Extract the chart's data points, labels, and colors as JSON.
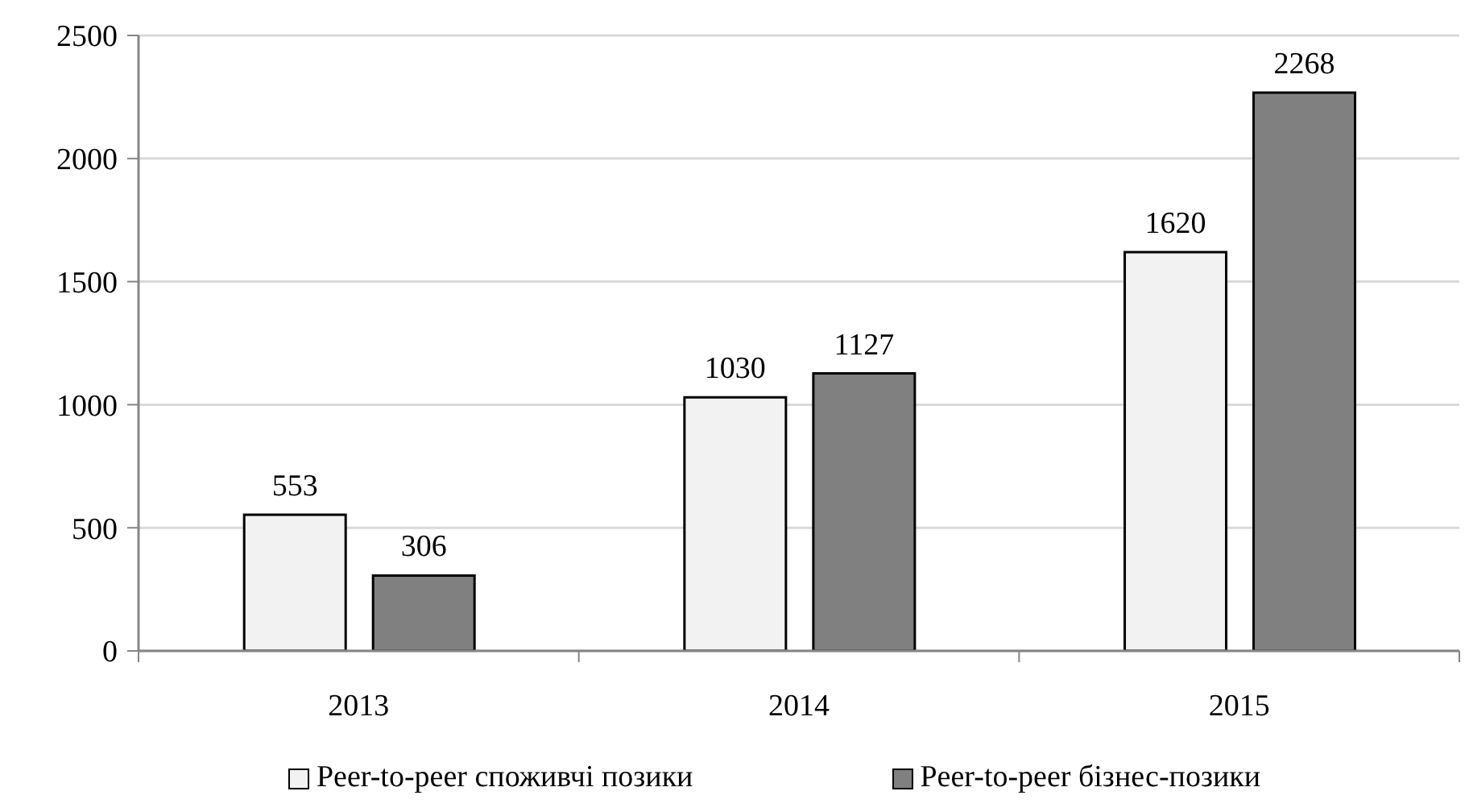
{
  "chart_data": {
    "type": "bar",
    "categories": [
      "2013",
      "2014",
      "2015"
    ],
    "series": [
      {
        "name": "Peer-to-peer споживчі позики",
        "color": "#f2f2f2",
        "values": [
          553,
          1030,
          1620
        ]
      },
      {
        "name": "Peer-to-peer бізнес-позики",
        "color": "#808080",
        "values": [
          306,
          1127,
          2268
        ]
      }
    ],
    "ylim": [
      0,
      2500
    ],
    "yticks": [
      0,
      500,
      1000,
      1500,
      2000,
      2500
    ],
    "grid": "y",
    "legend": "bottom",
    "data_labels": true
  }
}
